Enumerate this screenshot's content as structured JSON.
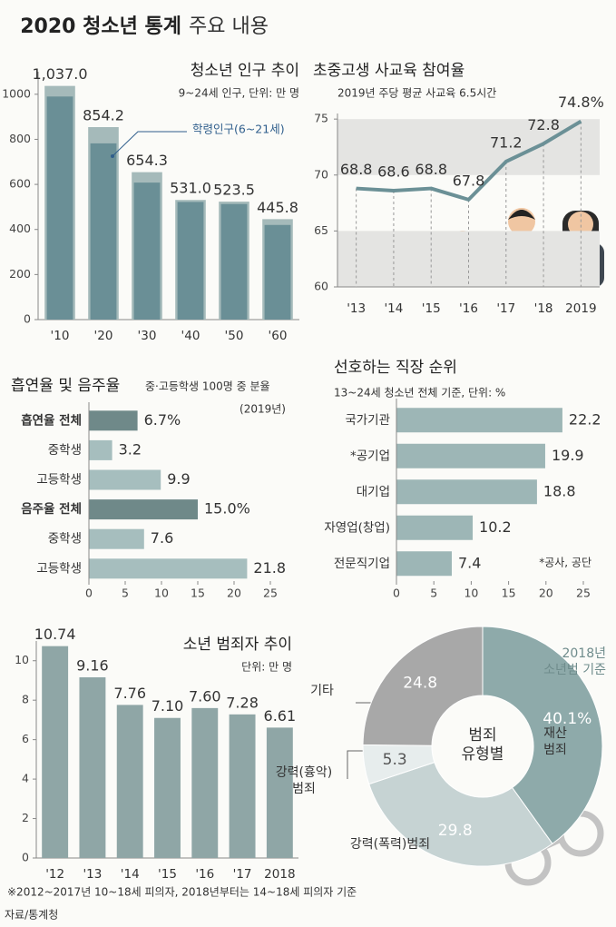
{
  "title": "2020 청소년 통계",
  "title_suffix": "주요 내용",
  "source": "자료/통계청",
  "chart_data": [
    {
      "type": "bar",
      "title": "청소년 인구 추이",
      "subtitle": "9~24세 인구, 단위: 만 명",
      "categories": [
        "'10",
        "'20",
        "'30",
        "'40",
        "'50",
        "'60"
      ],
      "series": [
        {
          "color": "#a5baba",
          "values": [
            1037.0,
            854.2,
            654.3,
            531.0,
            523.5,
            445.8
          ],
          "value_labels": [
            "1,037.0",
            "854.2",
            "654.3",
            "531.0",
            "523.5",
            "445.8"
          ]
        },
        {
          "name": "학령인구(6~21세)",
          "color": "#6a8f96",
          "values": [
            990,
            782,
            608,
            522,
            513,
            420
          ]
        }
      ],
      "ylim": [
        0,
        1100
      ],
      "yticks": [
        0,
        200,
        400,
        600,
        800,
        1000
      ]
    },
    {
      "type": "line",
      "title": "초중고생 사교육 참여율",
      "subtitle": "2019년 주당 평균 사교육 6.5시간",
      "categories": [
        "'13",
        "'14",
        "'15",
        "'16",
        "'17",
        "'18",
        "2019"
      ],
      "values": [
        68.8,
        68.6,
        68.8,
        67.8,
        71.2,
        72.8,
        74.8
      ],
      "value_labels": [
        "68.8",
        "68.6",
        "68.8",
        "67.8",
        "71.2",
        "72.8",
        "74.8%"
      ],
      "color": "#6b9096",
      "ylim": [
        60,
        75.5
      ],
      "yticks": [
        60,
        65,
        70,
        75
      ],
      "bands": [
        [
          60,
          65
        ],
        [
          70,
          75
        ]
      ],
      "band_color": "#e4e4e2"
    },
    {
      "type": "hbar",
      "title": "흡연율 및 음주율",
      "note": "중·고등학생 100명 중 분율",
      "subtitle": "(2019년)",
      "categories": [
        "흡연율 전체",
        "중학생",
        "고등학생",
        "음주율 전체",
        "중학생",
        "고등학생"
      ],
      "values": [
        6.7,
        3.2,
        9.9,
        15.0,
        7.6,
        21.8
      ],
      "value_labels": [
        "6.7%",
        "3.2",
        "9.9",
        "15.0%",
        "7.6",
        "21.8"
      ],
      "color": "#a6bebe",
      "emphasis_color": "#6f8989",
      "emphasis": [
        0,
        3
      ],
      "xlim": [
        0,
        25
      ],
      "xticks": [
        0,
        5,
        10,
        15,
        20,
        25
      ]
    },
    {
      "type": "hbar",
      "title": "선호하는 직장 순위",
      "subtitle": "13~24세 청소년 전체 기준, 단위: %",
      "categories": [
        "국가기관",
        "*공기업",
        "대기업",
        "자영업(창업)",
        "전문직기업"
      ],
      "values": [
        22.2,
        19.9,
        18.8,
        10.2,
        7.4
      ],
      "color": "#9db6b6",
      "note": "*공사, 공단",
      "xlim": [
        0,
        25
      ],
      "xticks": [
        0,
        5,
        10,
        15,
        20,
        25
      ]
    },
    {
      "type": "bar",
      "title": "소년 범죄자 추이",
      "subtitle": "단위: 만 명",
      "categories": [
        "'12",
        "'13",
        "'14",
        "'15",
        "'16",
        "'17",
        "2018"
      ],
      "values": [
        10.74,
        9.16,
        7.76,
        7.1,
        7.6,
        7.28,
        6.61
      ],
      "value_labels": [
        "10.74",
        "9.16",
        "7.76",
        "7.10",
        "7.60",
        "7.28",
        "6.61"
      ],
      "color": "#8fa6a6",
      "ylim": [
        0,
        11
      ],
      "yticks": [
        0,
        2,
        4,
        6,
        8,
        10
      ],
      "footnote": "※2012~2017년 10~18세 피의자, 2018년부터는 14~18세 피의자 기준"
    },
    {
      "type": "donut",
      "title": "2018년\n소년범 기준",
      "center_label": "범죄\n유형별",
      "categories": [
        "재산\n범죄",
        "강력(폭력)범죄",
        "강력(흉악)\n범죄",
        "기타"
      ],
      "values": [
        40.1,
        29.8,
        5.3,
        24.8
      ],
      "value_labels": [
        "40.1%",
        "29.8",
        "5.3",
        "24.8"
      ],
      "colors": [
        "#8eaaaa",
        "#c6d3d3",
        "#e7eded",
        "#a8a8a8"
      ]
    }
  ]
}
